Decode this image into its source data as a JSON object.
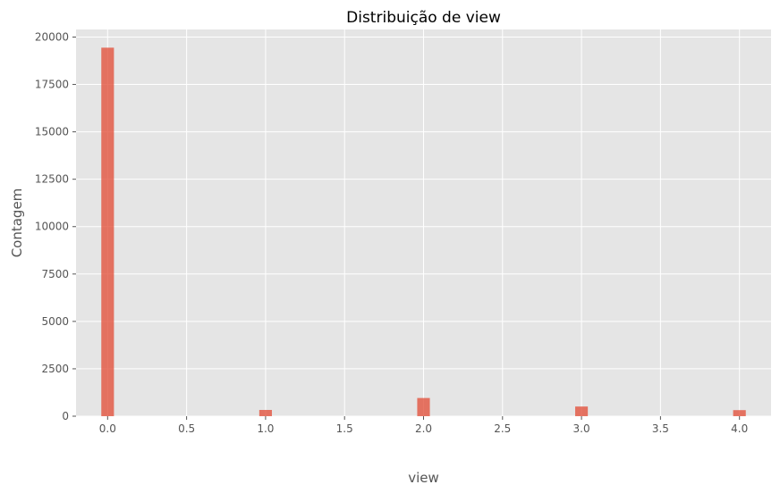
{
  "chart_data": {
    "type": "bar",
    "title": "Distribuição de view",
    "xlabel": "view",
    "ylabel": "Contagem",
    "xlim": [
      -0.2,
      4.2
    ],
    "ylim": [
      0,
      20400
    ],
    "xticks": [
      0.0,
      0.5,
      1.0,
      1.5,
      2.0,
      2.5,
      3.0,
      3.5,
      4.0
    ],
    "xtick_labels": [
      "0.0",
      "0.5",
      "1.0",
      "1.5",
      "2.0",
      "2.5",
      "3.0",
      "3.5",
      "4.0"
    ],
    "yticks": [
      0,
      2500,
      5000,
      7500,
      10000,
      12500,
      15000,
      17500,
      20000
    ],
    "ytick_labels": [
      "0",
      "2500",
      "5000",
      "7500",
      "10000",
      "12500",
      "15000",
      "17500",
      "20000"
    ],
    "bin_width": 0.08,
    "bins": [
      {
        "x": 0.0,
        "count": 19440
      },
      {
        "x": 1.0,
        "count": 330
      },
      {
        "x": 2.0,
        "count": 960
      },
      {
        "x": 3.0,
        "count": 510
      },
      {
        "x": 4.0,
        "count": 320
      }
    ],
    "grid": true,
    "bar_color": "#E24A33",
    "bar_opacity": 0.75,
    "background_color": "#E5E5E5"
  }
}
